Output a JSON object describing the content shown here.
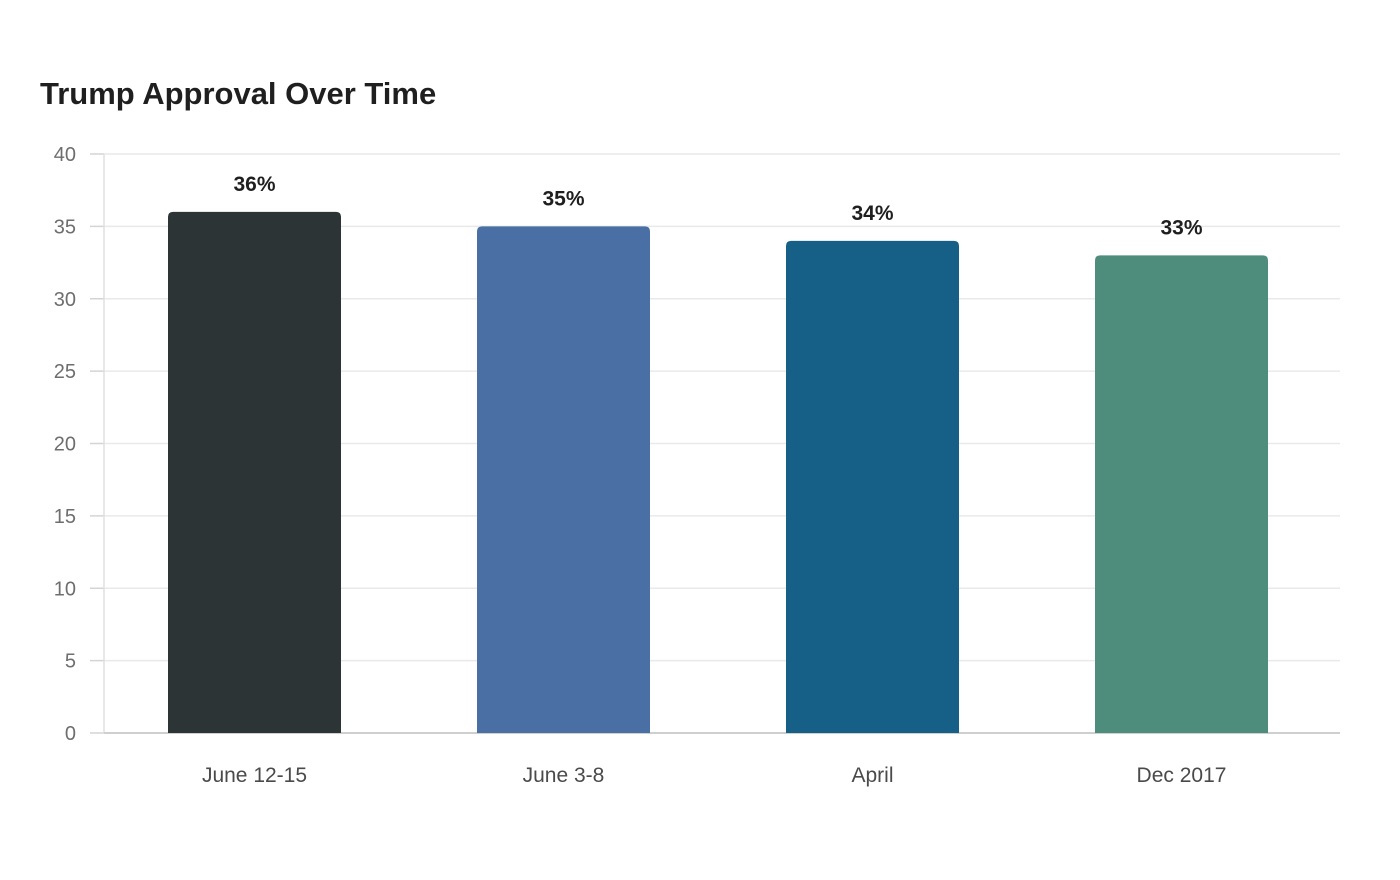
{
  "chart_data": {
    "type": "bar",
    "title": "Trump Approval Over Time",
    "xlabel": "",
    "ylabel": "",
    "categories": [
      "June 12-15",
      "June 3-8",
      "April",
      "Dec 2017"
    ],
    "values": [
      36,
      35,
      34,
      33
    ],
    "data_labels": [
      "36%",
      "35%",
      "34%",
      "33%"
    ],
    "bar_colors": [
      "#2d3436",
      "#4a6fa5",
      "#166088",
      "#4e8d7c"
    ],
    "ylim": [
      0,
      40
    ],
    "yticks": [
      0,
      5,
      10,
      15,
      20,
      25,
      30,
      35,
      40
    ],
    "grid": true,
    "legend": "none"
  }
}
